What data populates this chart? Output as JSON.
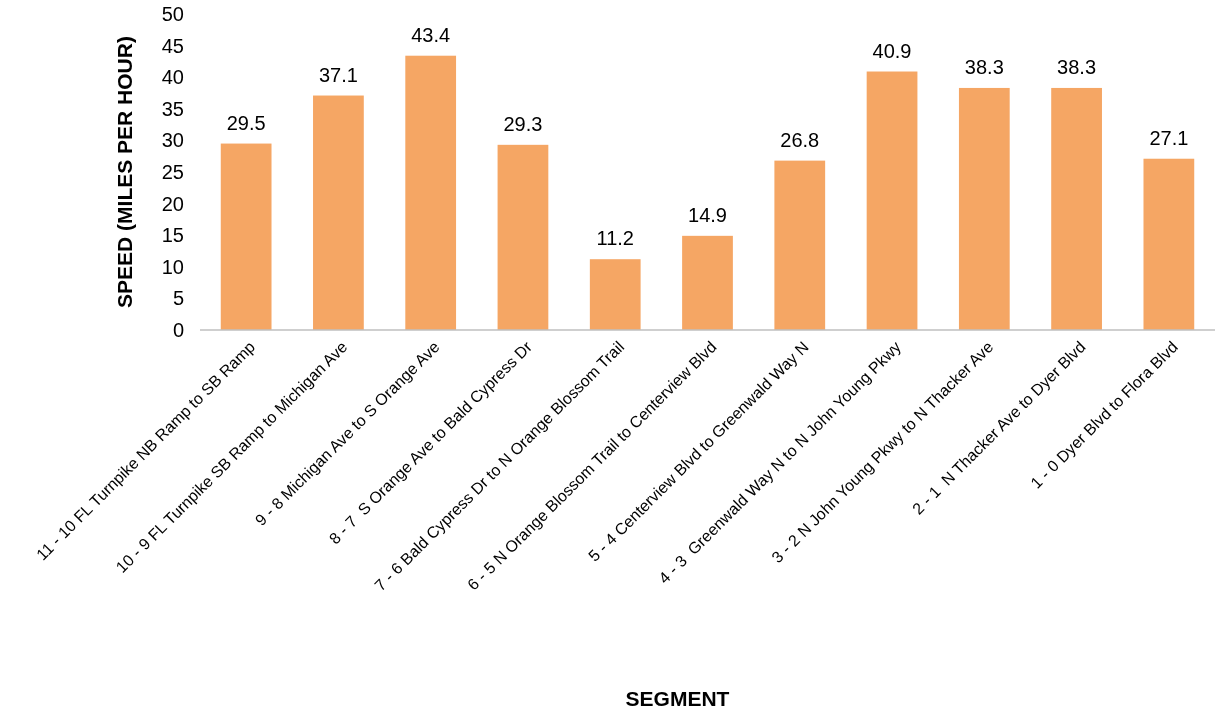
{
  "chart_data": {
    "type": "bar",
    "xlabel": "SEGMENT",
    "ylabel": "SPEED (MILES PER HOUR)",
    "categories": [
      "11 - 10 FL Turnpike NB Ramp to SB Ramp",
      "10 - 9 FL Turnpike SB Ramp to Michigan Ave",
      "9 - 8 Michigan Ave to S Orange Ave",
      "8 - 7  S Orange Ave to Bald Cypress Dr",
      "7 - 6 Bald Cypress Dr to N Orange Blossom Trail",
      "6 - 5 N Orange Blossom Trail to Centerview Blvd",
      "5 - 4 Centerview Blvd to Greenwald Way N",
      "4 - 3  Greenwald Way N to N John Young Pkwy",
      "3 - 2 N John Young Pkwy to N Thacker Ave",
      "2 - 1  N Thacker Ave to Dyer Blvd",
      "1 - 0 Dyer Blvd to Flora Blvd"
    ],
    "values": [
      29.5,
      37.1,
      43.4,
      29.3,
      11.2,
      14.9,
      26.8,
      40.9,
      38.3,
      38.3,
      27.1
    ],
    "color": "#f5a664",
    "ylim": [
      0,
      50
    ],
    "yticks": [
      0,
      5,
      10,
      15,
      20,
      25,
      30,
      35,
      40,
      45,
      50
    ],
    "grid": false,
    "data_labels": true
  }
}
